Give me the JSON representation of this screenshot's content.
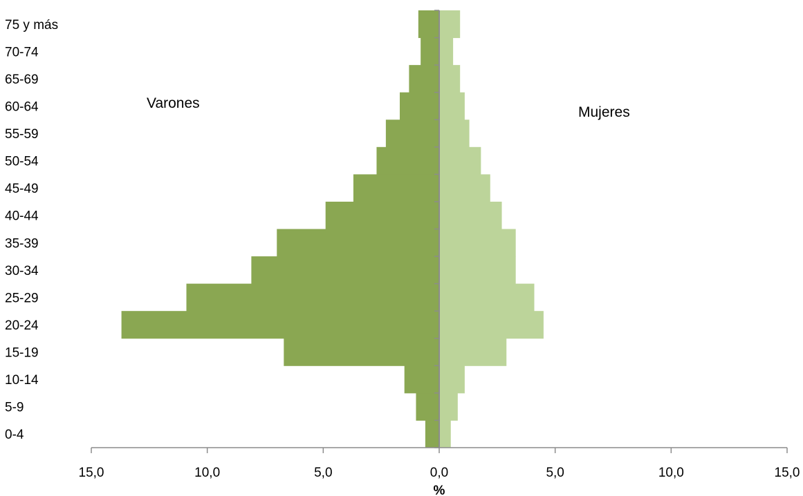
{
  "chart_data": {
    "type": "bar",
    "orientation": "horizontal",
    "layout": "population-pyramid",
    "categories": [
      "0-4",
      "5-9",
      "10-14",
      "15-19",
      "20-24",
      "25-29",
      "30-34",
      "35-39",
      "40-44",
      "45-49",
      "50-54",
      "55-59",
      "60-64",
      "65-69",
      "70-74",
      "75 y más"
    ],
    "series": [
      {
        "name": "Varones",
        "side": "left",
        "color": "#8aa752",
        "values": [
          0.6,
          1.0,
          1.5,
          6.7,
          13.7,
          10.9,
          8.1,
          7.0,
          4.9,
          3.7,
          2.7,
          2.3,
          1.7,
          1.3,
          0.8,
          0.9
        ]
      },
      {
        "name": "Mujeres",
        "side": "right",
        "color": "#bcd49a",
        "values": [
          0.5,
          0.8,
          1.1,
          2.9,
          4.5,
          4.1,
          3.3,
          3.3,
          2.7,
          2.2,
          1.8,
          1.3,
          1.1,
          0.9,
          0.6,
          0.9
        ]
      }
    ],
    "xlabel": "%",
    "ylabel": "",
    "xlim": [
      -15,
      15
    ],
    "x_ticks": [
      -15,
      -10,
      -5,
      0,
      5,
      10,
      15
    ],
    "x_tick_labels": [
      "15,0",
      "10,0",
      "5,0",
      "0,0",
      "5,0",
      "10,0",
      "15,0"
    ],
    "grid": false,
    "legend": "none"
  }
}
